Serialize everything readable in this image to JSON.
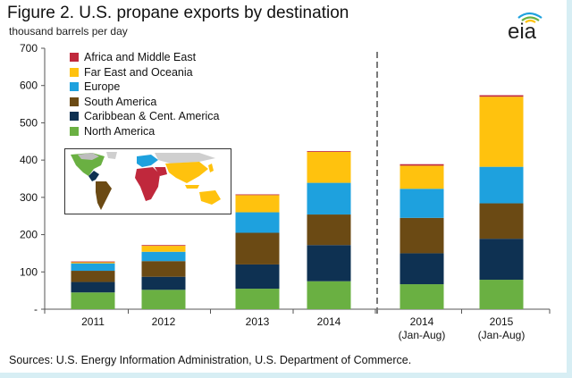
{
  "figure": {
    "title": "Figure 2. U.S. propane exports by destination",
    "subtitle": "thousand barrels per day",
    "logo_text": "eia",
    "source": "Sources: U.S. Energy Information Administration, U.S. Department of Commerce."
  },
  "colors": {
    "north_america": "#6ab042",
    "caribbean": "#0e3152",
    "south_america": "#6b4a14",
    "europe": "#1ea1de",
    "far_east": "#ffc20e",
    "africa_me": "#c0283c",
    "divider": "#7a7a7a"
  },
  "chart_data": {
    "type": "bar",
    "stacked": true,
    "categories": [
      "2011",
      "2012",
      "2013",
      "2014",
      "2014\n(Jan-Aug)",
      "2015\n(Jan-Aug)"
    ],
    "category_lines": [
      [
        "2011"
      ],
      [
        "2012"
      ],
      [
        "2013"
      ],
      [
        "2014"
      ],
      [
        "2014",
        "(Jan-Aug)"
      ],
      [
        "2015",
        "(Jan-Aug)"
      ]
    ],
    "series": [
      {
        "name": "North America",
        "key": "north_america",
        "values": [
          45,
          52,
          55,
          75,
          67,
          79
        ]
      },
      {
        "name": "Caribbean & Cent. America",
        "key": "caribbean",
        "values": [
          28,
          35,
          65,
          97,
          83,
          110
        ]
      },
      {
        "name": "South America",
        "key": "south_america",
        "values": [
          30,
          42,
          85,
          82,
          95,
          95
        ]
      },
      {
        "name": "Europe",
        "key": "europe",
        "values": [
          20,
          25,
          55,
          85,
          78,
          98
        ]
      },
      {
        "name": "Far East and Oceania",
        "key": "far_east",
        "values": [
          3,
          16,
          46,
          83,
          62,
          188
        ]
      },
      {
        "name": "Africa and Middle East",
        "key": "africa_me",
        "values": [
          2,
          2,
          2,
          2,
          4,
          4
        ]
      }
    ],
    "legend_order": [
      "Africa and Middle East",
      "Far East and Oceania",
      "Europe",
      "South America",
      "Caribbean & Cent. America",
      "North America"
    ],
    "yticks": [
      0,
      100,
      200,
      300,
      400,
      500,
      600,
      700
    ],
    "ytick_labels": [
      "-",
      "100",
      "200",
      "300",
      "400",
      "500",
      "600",
      "700"
    ],
    "ylim": [
      0,
      700
    ],
    "ylabel": "thousand barrels per day",
    "xlabel": "",
    "grid": false,
    "divider_after_index": 3,
    "legend_position": "top-left"
  }
}
